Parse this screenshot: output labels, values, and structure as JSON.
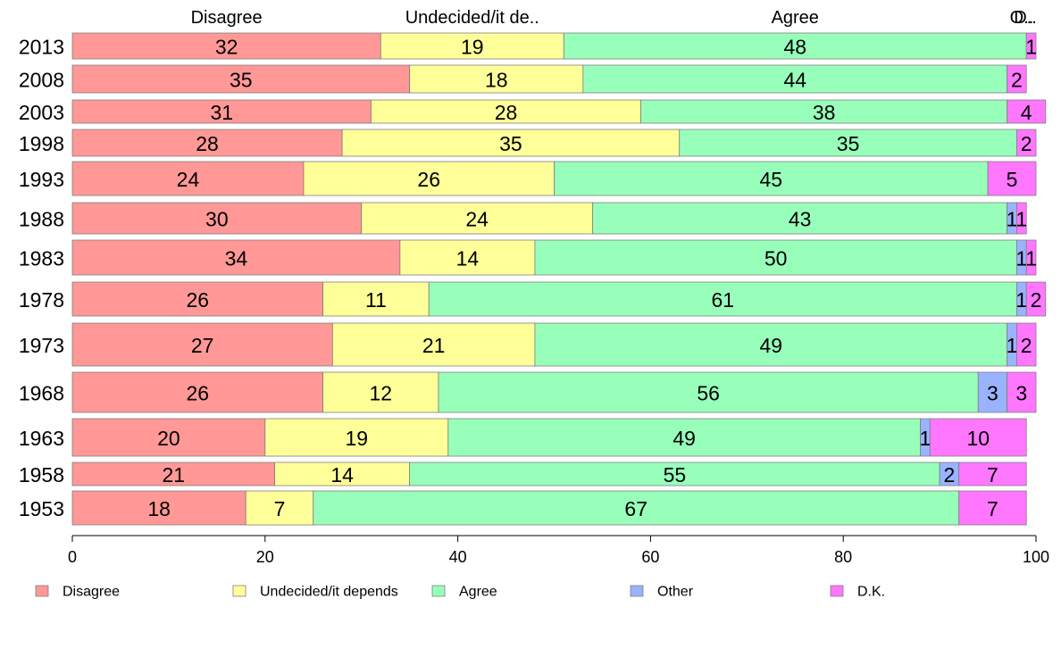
{
  "chart_data": {
    "type": "bar",
    "orientation": "horizontal",
    "stacked": true,
    "categories": [
      "2013",
      "2008",
      "2003",
      "1998",
      "1993",
      "1988",
      "1983",
      "1978",
      "1973",
      "1968",
      "1963",
      "1958",
      "1953"
    ],
    "series": [
      {
        "name": "Disagree",
        "color": "#ff9896",
        "values": [
          32,
          35,
          31,
          28,
          24,
          30,
          34,
          26,
          27,
          26,
          20,
          21,
          18
        ]
      },
      {
        "name": "Undecided/it depends",
        "color": "#ffff99",
        "values": [
          19,
          18,
          28,
          35,
          26,
          24,
          14,
          11,
          21,
          12,
          19,
          14,
          7
        ]
      },
      {
        "name": "Agree",
        "color": "#98ffbb",
        "values": [
          48,
          44,
          38,
          35,
          45,
          43,
          50,
          61,
          49,
          56,
          49,
          55,
          67
        ]
      },
      {
        "name": "Other",
        "color": "#99b3ff",
        "values": [
          0,
          0,
          0,
          0,
          0,
          1,
          1,
          1,
          1,
          3,
          1,
          2,
          0
        ]
      },
      {
        "name": "D.K.",
        "color": "#ff77ff",
        "values": [
          1,
          2,
          4,
          2,
          5,
          1,
          1,
          2,
          2,
          3,
          10,
          7,
          7
        ]
      }
    ],
    "top_labels": [
      "Disagree",
      "Undecided/it de..",
      "Agree",
      "O..",
      "D.."
    ],
    "xlim": [
      0,
      100
    ],
    "xticks": [
      "0",
      "20",
      "40",
      "60",
      "80",
      "100"
    ],
    "grid": false,
    "legend_position": "bottom"
  }
}
